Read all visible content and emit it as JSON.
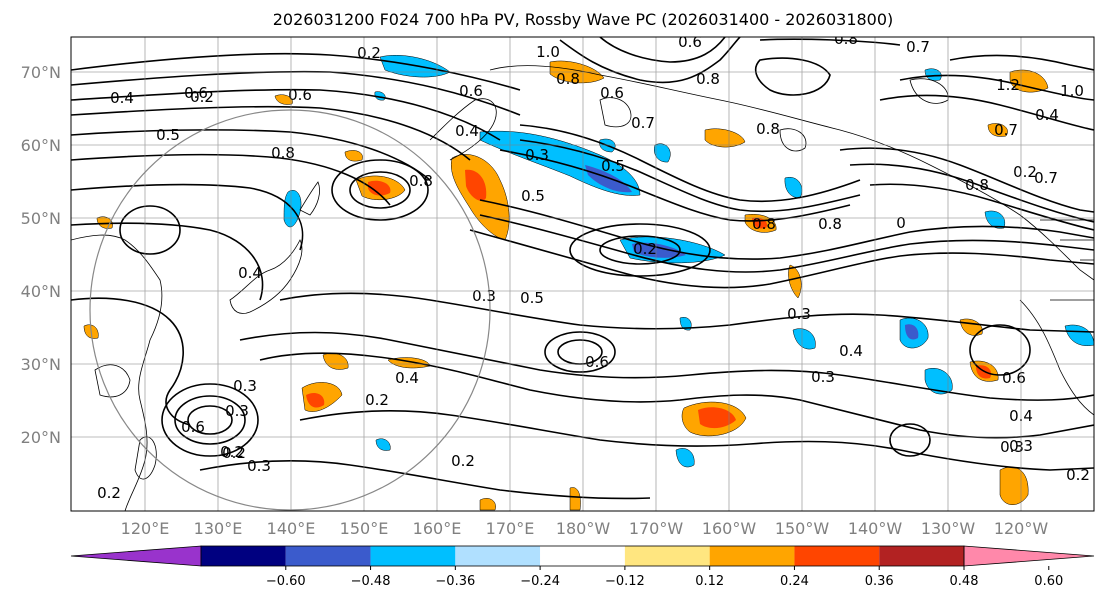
{
  "title": "2026031200 F024 700 hPa PV, Rossby Wave PC (2026031400 - 2026031800)",
  "latitude_labels": [
    "70°N",
    "60°N",
    "50°N",
    "40°N",
    "30°N",
    "20°N"
  ],
  "longitude_labels": [
    "120°E",
    "130°E",
    "140°E",
    "150°E",
    "160°E",
    "170°E",
    "180°W",
    "170°W",
    "160°W",
    "150°W",
    "140°W",
    "130°W",
    "120°W"
  ],
  "colorbar": {
    "colors": [
      "#9933cc",
      "#000080",
      "#3b5bcc",
      "#00bfff",
      "#b0e0ff",
      "#ffffff",
      "#ffe680",
      "#ffa500",
      "#ff4500",
      "#b22222",
      "#ff88aa"
    ],
    "tick_labels": [
      "−0.60",
      "−0.48",
      "−0.36",
      "−0.24",
      "−0.12",
      "0.12",
      "0.24",
      "0.36",
      "0.48",
      "0.60"
    ]
  },
  "contour_labels": [
    "1.0",
    "0.8",
    "0.6",
    "0.6",
    "0.8",
    "0.7",
    "0.2",
    "0.6",
    "0.8",
    "0.8",
    "0.6",
    "0.2",
    "0.4",
    "0.3",
    "0.5",
    "0.7",
    "0.5",
    "0.4",
    "0.7",
    "0.8",
    "0.6",
    "1.2",
    "1.0",
    "0.7",
    "0.8",
    "0.2",
    "0.4",
    "0.8",
    "0.5",
    "0.2",
    "0.3",
    "0.8",
    "0.8",
    "0",
    "0.4",
    "0.5",
    "0.3",
    "0.4",
    "0.6",
    "0.4",
    "0.2",
    "0.3",
    "0.6",
    "0.2",
    "0.3",
    "0.3",
    "0.2",
    "0.2",
    "0.2",
    "0.4",
    "0.3",
    "0.3",
    "0.2",
    "0.3",
    "0.6"
  ],
  "anomaly_colors": {
    "strong_pos": "#ff4500",
    "pos": "#ffa500",
    "neg": "#00bfff",
    "strong_neg": "#3b5bcc"
  }
}
